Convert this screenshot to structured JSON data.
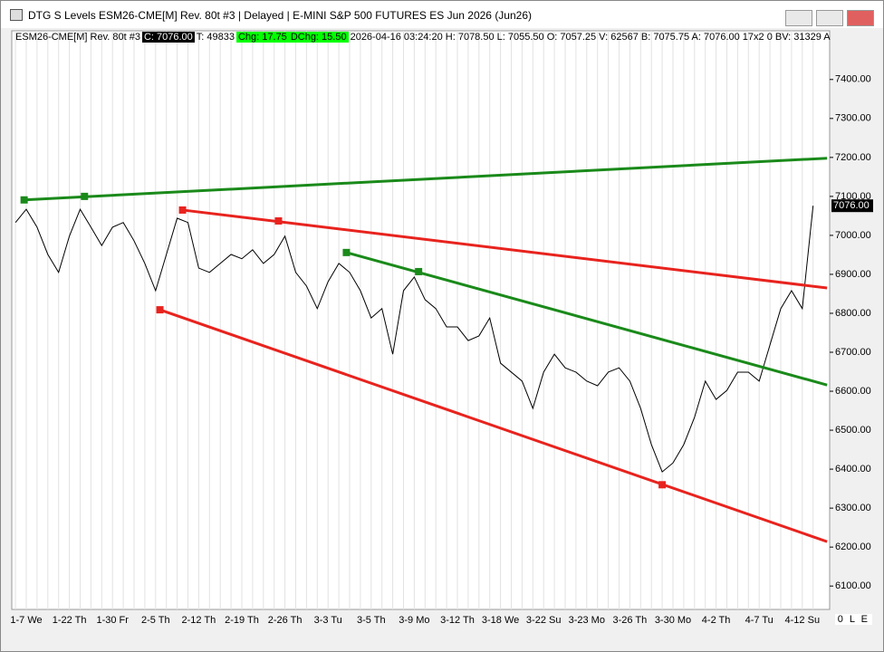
{
  "window": {
    "title": "DTG S Levels ESM26-CME[M]  Rev. 80t #3 | Delayed | E-MINI S&P 500 FUTURES ES Jun 2026 (Jun26)",
    "status": "0 L E"
  },
  "info_bar": {
    "symbol": "ESM26-CME[M]  Rev. 80t #3",
    "close": "C: 7076.00",
    "ticks": "T: 49833",
    "change": "Chg: 17.75",
    "day_change": "DChg: 15.50",
    "details": "2026-04-16 03:24:20 H: 7078.50 L: 7055.50 O: 7057.25 V: 62567 B: 7075.75 A: 7076.00 17x2 0 BV: 31329 A"
  },
  "chart_data": {
    "type": "line",
    "color": "#000000",
    "grid": "x",
    "categories": [
      null,
      "1-7 We",
      null,
      null,
      null,
      "1-22 Th",
      null,
      null,
      null,
      "1-30 Fr",
      null,
      null,
      null,
      "2-5 Th",
      null,
      null,
      null,
      "2-12 Th",
      null,
      null,
      null,
      "2-19 Th",
      null,
      null,
      null,
      "2-26 Th",
      null,
      null,
      null,
      "3-3 Tu",
      null,
      null,
      null,
      "3-5 Th",
      null,
      null,
      null,
      "3-9 Mo",
      null,
      null,
      null,
      "3-12 Th",
      null,
      null,
      null,
      "3-18 We",
      null,
      null,
      null,
      "3-22 Su",
      null,
      null,
      null,
      "3-23 Mo",
      null,
      null,
      null,
      "3-26 Th",
      null,
      null,
      null,
      "3-30 Mo",
      null,
      null,
      null,
      "4-2 Th",
      null,
      null,
      null,
      "4-7 Tu",
      null,
      null,
      null,
      "4-12 Su",
      null
    ],
    "values": [
      7033,
      7067,
      7021,
      6951,
      6905,
      6998,
      7067,
      7021,
      6974,
      7021,
      7033,
      6986,
      6928,
      6858,
      6951,
      7044,
      7033,
      6916,
      6905,
      6928,
      6951,
      6940,
      6963,
      6928,
      6951,
      6998,
      6905,
      6870,
      6812,
      6881,
      6928,
      6905,
      6858,
      6788,
      6812,
      6695,
      6858,
      6893,
      6835,
      6812,
      6765,
      6765,
      6730,
      6742,
      6788,
      6672,
      6649,
      6626,
      6556,
      6649,
      6695,
      6660,
      6649,
      6626,
      6614,
      6649,
      6660,
      6626,
      6556,
      6463,
      6393,
      6416,
      6463,
      6533,
      6626,
      6579,
      6602,
      6649,
      6649,
      6626,
      6719,
      6812,
      6858,
      6812,
      7076
    ],
    "ylim": [
      6040,
      7525
    ],
    "yticks": [
      {
        "value": 6100,
        "label": "6100.00"
      },
      {
        "value": 6200,
        "label": "6200.00"
      },
      {
        "value": 6300,
        "label": "6300.00"
      },
      {
        "value": 6400,
        "label": "6400.00"
      },
      {
        "value": 6500,
        "label": "6500.00"
      },
      {
        "value": 6600,
        "label": "6600.00"
      },
      {
        "value": 6700,
        "label": "6700.00"
      },
      {
        "value": 6800,
        "label": "6800.00"
      },
      {
        "value": 6900,
        "label": "6900.00"
      },
      {
        "value": 7000,
        "label": "7000.00"
      },
      {
        "value": 7100,
        "label": "7100.00"
      },
      {
        "value": 7200,
        "label": "7200.00"
      },
      {
        "value": 7300,
        "label": "7300.00"
      },
      {
        "value": 7400,
        "label": "7400.00"
      }
    ],
    "last_price": {
      "value": 7076,
      "label": "7076.00"
    },
    "trendlines": [
      {
        "color": "#1a8a1a",
        "x": [
          0.8,
          75.3
        ],
        "values": [
          7091,
          7198
        ],
        "anchors": {
          "x": [
            0.8,
            6.4
          ],
          "values": [
            7091,
            7100
          ]
        }
      },
      {
        "color": "#e8231e",
        "x": [
          15.5,
          75.3
        ],
        "values": [
          7065,
          6865
        ],
        "anchors": {
          "x": [
            15.5,
            24.4
          ],
          "values": [
            7065,
            7037
          ]
        }
      },
      {
        "color": "#1a8a1a",
        "x": [
          30.7,
          75.3
        ],
        "values": [
          6956,
          6616
        ],
        "anchors": {
          "x": [
            30.7,
            37.4
          ],
          "values": [
            6956,
            6907
          ]
        }
      },
      {
        "color": "#e8231e",
        "x": [
          13.4,
          75.3
        ],
        "values": [
          6809,
          6214
        ],
        "anchors": {
          "x": [
            13.4,
            60.0
          ],
          "values": [
            6809,
            6360
          ]
        }
      }
    ]
  }
}
